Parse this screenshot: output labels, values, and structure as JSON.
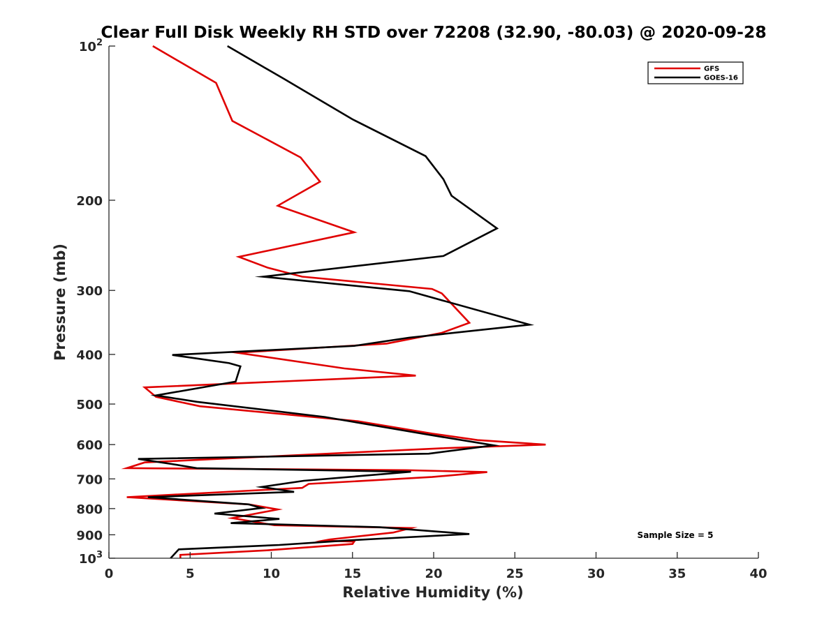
{
  "chart_data": {
    "type": "line",
    "title": "Clear Full Disk Weekly RH STD over 72208 (32.90, -80.03) @ 2020-09-28",
    "xlabel": "Relative Humidity (%)",
    "ylabel": "Pressure (mb)",
    "xlim": [
      0,
      40
    ],
    "ylim": [
      100,
      1000
    ],
    "yscale": "log",
    "y_reversed": true,
    "grid": false,
    "legend_position": "top-right",
    "x_ticks": [
      "0",
      "5",
      "10",
      "15",
      "20",
      "25",
      "30",
      "35",
      "40"
    ],
    "y_ticks": [
      {
        "value": 100,
        "label": "10",
        "sup": "2"
      },
      {
        "value": 200,
        "label": "200",
        "sup": ""
      },
      {
        "value": 300,
        "label": "300",
        "sup": ""
      },
      {
        "value": 400,
        "label": "400",
        "sup": ""
      },
      {
        "value": 500,
        "label": "500",
        "sup": ""
      },
      {
        "value": 600,
        "label": "600",
        "sup": ""
      },
      {
        "value": 700,
        "label": "700",
        "sup": ""
      },
      {
        "value": 800,
        "label": "800",
        "sup": ""
      },
      {
        "value": 900,
        "label": "900",
        "sup": ""
      },
      {
        "value": 1000,
        "label": "10",
        "sup": "3"
      }
    ],
    "annotation": "Sample Size = 5",
    "series": [
      {
        "name": "GFS",
        "color": "#e00000",
        "points": [
          [
            2.7,
            100
          ],
          [
            6.6,
            118
          ],
          [
            7.6,
            140
          ],
          [
            11.8,
            165
          ],
          [
            13.0,
            184
          ],
          [
            10.4,
            205
          ],
          [
            15.1,
            231
          ],
          [
            8.0,
            258
          ],
          [
            9.8,
            271
          ],
          [
            11.9,
            282
          ],
          [
            19.9,
            298
          ],
          [
            20.5,
            304
          ],
          [
            22.2,
            347
          ],
          [
            20.5,
            363
          ],
          [
            17.1,
            381
          ],
          [
            7.9,
            397
          ],
          [
            14.5,
            426
          ],
          [
            18.9,
            440
          ],
          [
            2.2,
            464
          ],
          [
            2.9,
            484
          ],
          [
            5.6,
            505
          ],
          [
            15.3,
            540
          ],
          [
            19.9,
            571
          ],
          [
            22.7,
            588
          ],
          [
            26.9,
            600
          ],
          [
            20.5,
            610
          ],
          [
            2.2,
            650
          ],
          [
            1.1,
            667
          ],
          [
            18.3,
            673
          ],
          [
            23.3,
            679
          ],
          [
            19.9,
            694
          ],
          [
            12.3,
            716
          ],
          [
            11.9,
            729
          ],
          [
            1.1,
            760
          ],
          [
            8.6,
            785
          ],
          [
            10.4,
            803
          ],
          [
            7.6,
            835
          ],
          [
            10.2,
            862
          ],
          [
            18.6,
            873
          ],
          [
            17.5,
            891
          ],
          [
            13.6,
            919
          ],
          [
            13.2,
            924
          ],
          [
            15.1,
            928
          ],
          [
            15.0,
            938
          ],
          [
            9.8,
            965
          ],
          [
            4.4,
            985
          ],
          [
            4.4,
            1000
          ]
        ]
      },
      {
        "name": "GOES-16",
        "color": "#000000",
        "points": [
          [
            7.3,
            100
          ],
          [
            10.8,
            116
          ],
          [
            15.0,
            139
          ],
          [
            19.5,
            164
          ],
          [
            20.6,
            182
          ],
          [
            21.1,
            196
          ],
          [
            23.9,
            227
          ],
          [
            20.6,
            257
          ],
          [
            9.5,
            282
          ],
          [
            18.5,
            301
          ],
          [
            25.9,
            350
          ],
          [
            18.5,
            371
          ],
          [
            15.1,
            385
          ],
          [
            3.9,
            401
          ],
          [
            7.4,
            416
          ],
          [
            8.1,
            422
          ],
          [
            7.8,
            452
          ],
          [
            2.9,
            481
          ],
          [
            5.4,
            495
          ],
          [
            13.3,
            530
          ],
          [
            19.4,
            572
          ],
          [
            23.7,
            602
          ],
          [
            19.7,
            625
          ],
          [
            1.8,
            640
          ],
          [
            3.9,
            655
          ],
          [
            5.4,
            667
          ],
          [
            18.6,
            678
          ],
          [
            12.0,
            706
          ],
          [
            9.4,
            726
          ],
          [
            11.4,
            742
          ],
          [
            2.4,
            760
          ],
          [
            8.6,
            785
          ],
          [
            9.4,
            798
          ],
          [
            6.5,
            818
          ],
          [
            10.5,
            838
          ],
          [
            7.5,
            854
          ],
          [
            16.7,
            870
          ],
          [
            22.2,
            897
          ],
          [
            16.7,
            916
          ],
          [
            14.5,
            924
          ],
          [
            10.5,
            942
          ],
          [
            4.3,
            961
          ],
          [
            3.8,
            1000
          ]
        ]
      }
    ]
  }
}
